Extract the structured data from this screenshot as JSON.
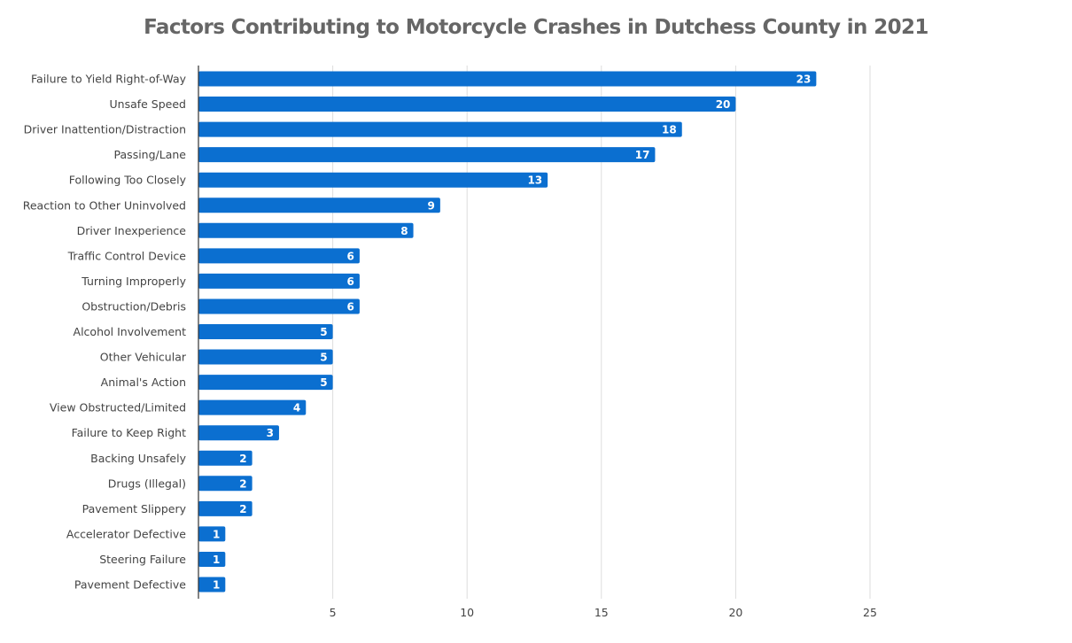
{
  "chart_data": {
    "type": "bar",
    "orientation": "horizontal",
    "title": "Factors Contributing to Motorcycle Crashes in Dutchess County in 2021",
    "categories": [
      "Failure to Yield Right-of-Way",
      "Unsafe Speed",
      "Driver Inattention/Distraction",
      "Passing/Lane",
      "Following Too Closely",
      "Reaction to Other Uninvolved",
      "Driver Inexperience",
      "Traffic Control Device",
      "Turning Improperly",
      "Obstruction/Debris",
      "Alcohol Involvement",
      "Other Vehicular",
      "Animal's Action",
      "View Obstructed/Limited",
      "Failure to Keep Right",
      "Backing Unsafely",
      "Drugs (Illegal)",
      "Pavement Slippery",
      "Accelerator Defective",
      "Steering Failure",
      "Pavement Defective"
    ],
    "values": [
      23,
      20,
      18,
      17,
      13,
      9,
      8,
      6,
      6,
      6,
      5,
      5,
      5,
      4,
      3,
      2,
      2,
      2,
      1,
      1,
      1
    ],
    "xlim": [
      0,
      25
    ],
    "xticks": [
      5,
      10,
      15,
      20,
      25
    ],
    "xtick_labels": [
      "5",
      "10",
      "15",
      "20",
      "25"
    ],
    "grid": "vertical",
    "legend": "none",
    "bar_color": "#0b6fd0",
    "grid_color": "#dddddd",
    "axis_color": "#333333",
    "data_labels": "inside-end"
  }
}
